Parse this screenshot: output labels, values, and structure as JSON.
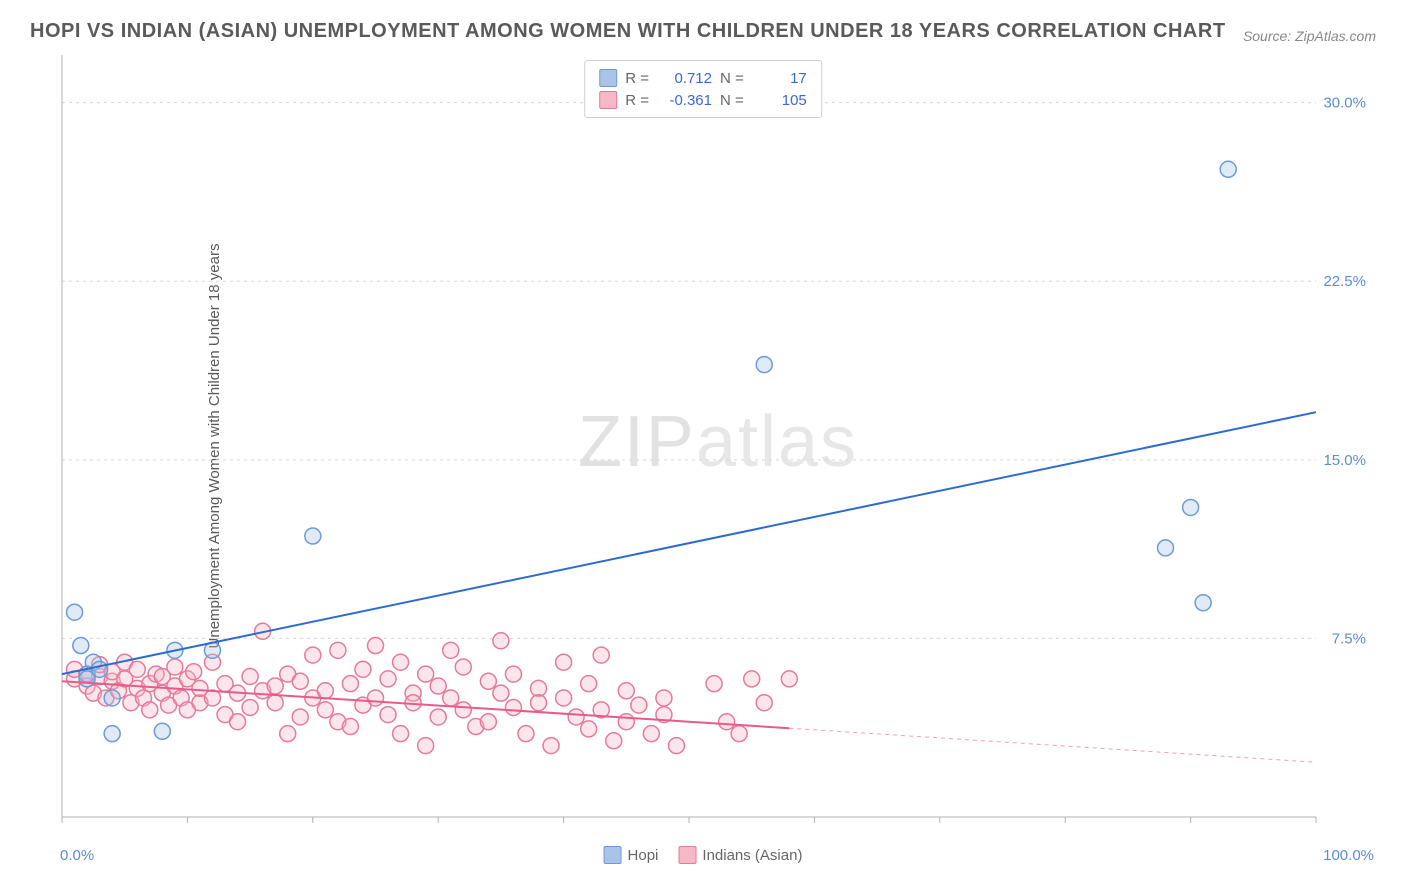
{
  "title": "HOPI VS INDIAN (ASIAN) UNEMPLOYMENT AMONG WOMEN WITH CHILDREN UNDER 18 YEARS CORRELATION CHART",
  "source": "Source: ZipAtlas.com",
  "ylabel": "Unemployment Among Women with Children Under 18 years",
  "watermark": {
    "bold": "ZIP",
    "thin": "atlas"
  },
  "chart": {
    "type": "scatter-with-regression",
    "background_color": "#ffffff",
    "grid_color": "#d8d8d8",
    "axis_line_color": "#b0b0b0",
    "xlim": [
      0,
      100
    ],
    "ylim": [
      0,
      32
    ],
    "x_ticks_percent": [
      0,
      10,
      20,
      30,
      40,
      50,
      60,
      70,
      80,
      90,
      100
    ],
    "x_tick_labels": {
      "0": "0.0%",
      "100": "100.0%"
    },
    "y_ticks": [
      7.5,
      15.0,
      22.5,
      30.0
    ],
    "y_gridlines": [
      7.5,
      15.0,
      22.5,
      30.0
    ],
    "y_tick_labels": [
      "7.5%",
      "15.0%",
      "22.5%",
      "30.0%"
    ],
    "marker_radius": 8,
    "marker_stroke_width": 1.5,
    "marker_fill_opacity": 0.35,
    "line_width": 2
  },
  "series": [
    {
      "name": "Hopi",
      "color_fill": "#aac4e8",
      "color_stroke": "#6b9bd6",
      "line_color": "#2e6bd1",
      "r": "0.712",
      "n": "17",
      "regression": {
        "x1": 0,
        "y1": 6.0,
        "x2": 100,
        "y2": 17.0,
        "solid_until_x": 100
      },
      "points": [
        [
          1,
          8.6
        ],
        [
          1.5,
          7.2
        ],
        [
          2,
          6.0
        ],
        [
          2,
          5.8
        ],
        [
          2.5,
          6.5
        ],
        [
          3,
          6.2
        ],
        [
          4,
          3.5
        ],
        [
          8,
          3.6
        ],
        [
          9,
          7.0
        ],
        [
          12,
          7.0
        ],
        [
          20,
          11.8
        ],
        [
          56,
          19.0
        ],
        [
          88,
          11.3
        ],
        [
          90,
          13.0
        ],
        [
          91,
          9.0
        ],
        [
          93,
          27.2
        ],
        [
          4,
          5.0
        ]
      ]
    },
    {
      "name": "Indians (Asian)",
      "color_fill": "#f5b8c6",
      "color_stroke": "#e67a98",
      "line_color": "#e85a8a",
      "r": "-0.361",
      "n": "105",
      "regression": {
        "x1": 0,
        "y1": 5.7,
        "x2": 100,
        "y2": 2.3,
        "solid_until_x": 58
      },
      "points": [
        [
          1,
          5.8
        ],
        [
          1,
          6.2
        ],
        [
          2,
          5.5
        ],
        [
          2,
          6.0
        ],
        [
          2.5,
          5.2
        ],
        [
          3,
          5.9
        ],
        [
          3,
          6.4
        ],
        [
          3.5,
          5.0
        ],
        [
          4,
          5.7
        ],
        [
          4,
          6.1
        ],
        [
          4.5,
          5.3
        ],
        [
          5,
          5.8
        ],
        [
          5,
          6.5
        ],
        [
          5.5,
          4.8
        ],
        [
          6,
          5.4
        ],
        [
          6,
          6.2
        ],
        [
          6.5,
          5.0
        ],
        [
          7,
          5.6
        ],
        [
          7,
          4.5
        ],
        [
          7.5,
          6.0
        ],
        [
          8,
          5.2
        ],
        [
          8,
          5.9
        ],
        [
          8.5,
          4.7
        ],
        [
          9,
          5.5
        ],
        [
          9,
          6.3
        ],
        [
          9.5,
          5.0
        ],
        [
          10,
          4.5
        ],
        [
          10,
          5.8
        ],
        [
          10.5,
          6.1
        ],
        [
          11,
          4.8
        ],
        [
          11,
          5.4
        ],
        [
          12,
          5.0
        ],
        [
          12,
          6.5
        ],
        [
          13,
          4.3
        ],
        [
          13,
          5.6
        ],
        [
          14,
          5.2
        ],
        [
          14,
          4.0
        ],
        [
          15,
          5.9
        ],
        [
          15,
          4.6
        ],
        [
          16,
          5.3
        ],
        [
          16,
          7.8
        ],
        [
          17,
          4.8
        ],
        [
          17,
          5.5
        ],
        [
          18,
          3.5
        ],
        [
          18,
          6.0
        ],
        [
          19,
          4.2
        ],
        [
          19,
          5.7
        ],
        [
          20,
          5.0
        ],
        [
          20,
          6.8
        ],
        [
          21,
          4.5
        ],
        [
          21,
          5.3
        ],
        [
          22,
          7.0
        ],
        [
          22,
          4.0
        ],
        [
          23,
          5.6
        ],
        [
          23,
          3.8
        ],
        [
          24,
          6.2
        ],
        [
          24,
          4.7
        ],
        [
          25,
          5.0
        ],
        [
          25,
          7.2
        ],
        [
          26,
          4.3
        ],
        [
          26,
          5.8
        ],
        [
          27,
          6.5
        ],
        [
          27,
          3.5
        ],
        [
          28,
          5.2
        ],
        [
          28,
          4.8
        ],
        [
          29,
          6.0
        ],
        [
          29,
          3.0
        ],
        [
          30,
          5.5
        ],
        [
          30,
          4.2
        ],
        [
          31,
          7.0
        ],
        [
          31,
          5.0
        ],
        [
          32,
          4.5
        ],
        [
          32,
          6.3
        ],
        [
          33,
          3.8
        ],
        [
          34,
          5.7
        ],
        [
          34,
          4.0
        ],
        [
          35,
          7.4
        ],
        [
          35,
          5.2
        ],
        [
          36,
          4.6
        ],
        [
          36,
          6.0
        ],
        [
          37,
          3.5
        ],
        [
          38,
          5.4
        ],
        [
          38,
          4.8
        ],
        [
          39,
          3.0
        ],
        [
          40,
          5.0
        ],
        [
          40,
          6.5
        ],
        [
          41,
          4.2
        ],
        [
          42,
          5.6
        ],
        [
          42,
          3.7
        ],
        [
          43,
          4.5
        ],
        [
          43,
          6.8
        ],
        [
          44,
          3.2
        ],
        [
          45,
          4.0
        ],
        [
          45,
          5.3
        ],
        [
          46,
          4.7
        ],
        [
          47,
          3.5
        ],
        [
          48,
          5.0
        ],
        [
          48,
          4.3
        ],
        [
          49,
          3.0
        ],
        [
          52,
          5.6
        ],
        [
          53,
          4.0
        ],
        [
          54,
          3.5
        ],
        [
          55,
          5.8
        ],
        [
          56,
          4.8
        ],
        [
          58,
          5.8
        ]
      ]
    }
  ],
  "legend_top_labels": {
    "r_prefix": "R =",
    "n_prefix": "N ="
  },
  "legend_bottom": [
    {
      "label": "Hopi",
      "series_idx": 0
    },
    {
      "label": "Indians (Asian)",
      "series_idx": 1
    }
  ]
}
